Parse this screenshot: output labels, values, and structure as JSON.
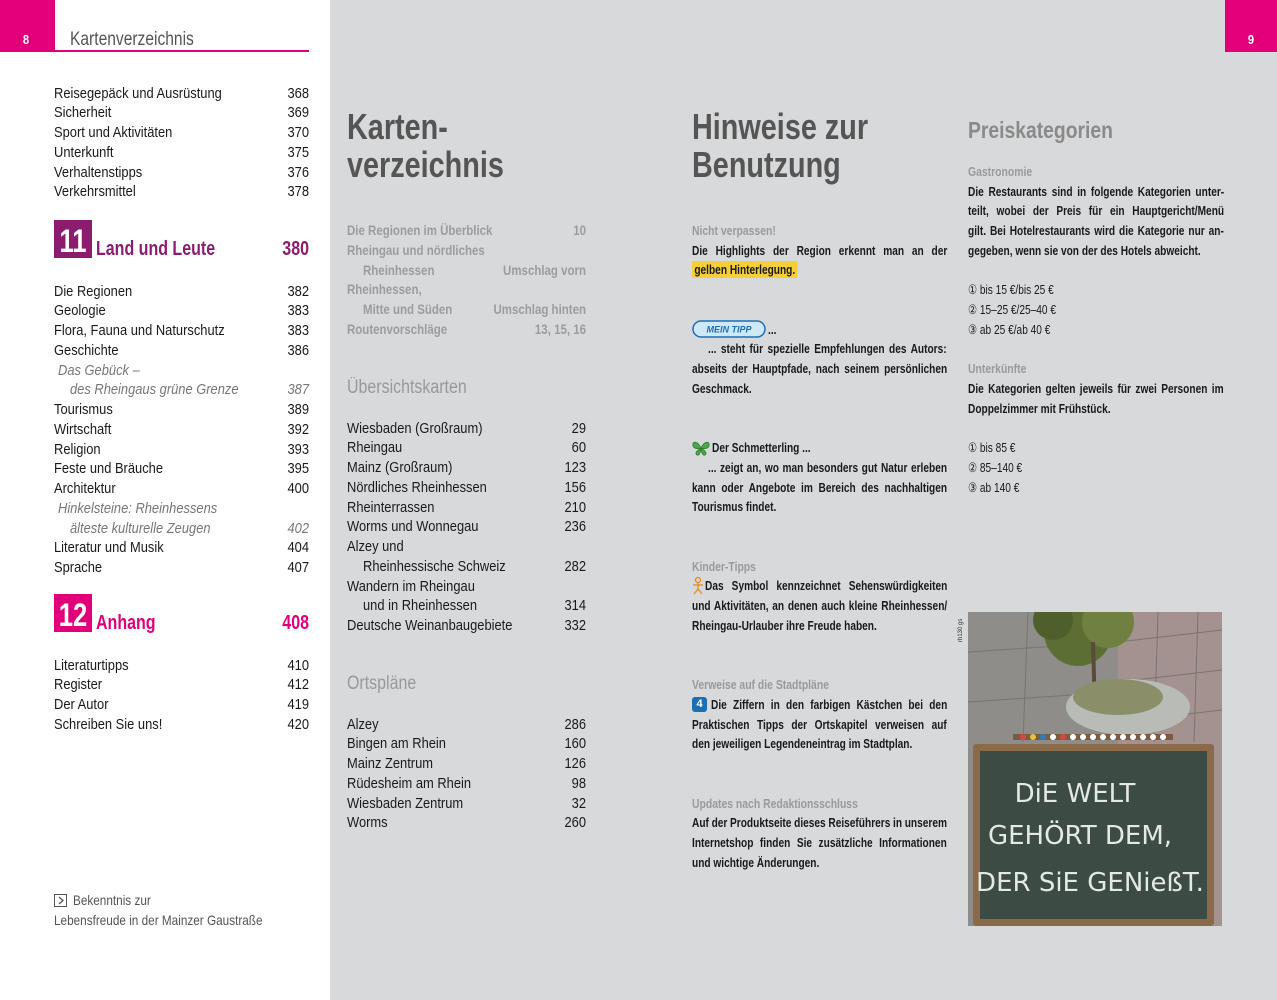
{
  "left_page": {
    "page_number": "8",
    "running_title": "Kartenverzeichnis",
    "toc": [
      {
        "entries": [
          {
            "text": "Reisegepäck und Ausrüstung",
            "page": 368
          },
          {
            "text": "Sicherheit",
            "page": 369
          },
          {
            "text": "Sport und Aktivitäten",
            "page": 370
          },
          {
            "text": "Unterkunft",
            "page": 375
          },
          {
            "text": "Verhaltenstipps",
            "page": 376
          },
          {
            "text": "Verkehrsmittel",
            "page": 378
          }
        ]
      },
      {
        "chapter_number": "11",
        "chapter_title": "Land und Leute",
        "chapter_page": 380,
        "color": "#8c1d6e",
        "entries": [
          {
            "text": "Die Regionen",
            "page": 382
          },
          {
            "text": "Geologie",
            "page": 383
          },
          {
            "text": "Flora, Fauna und Naturschutz",
            "page": 383
          },
          {
            "text": "Geschichte",
            "page": 386
          },
          {
            "lines": [
              "Das Gebück –",
              "des Rheingaus grüne Grenze"
            ],
            "page": 387,
            "style": "italic"
          },
          {
            "text": "Tourismus",
            "page": 389
          },
          {
            "text": "Wirtschaft",
            "page": 392
          },
          {
            "text": "Religion",
            "page": 393
          },
          {
            "text": "Feste und Bräuche",
            "page": 395
          },
          {
            "text": "Architektur",
            "page": 400
          },
          {
            "lines": [
              "Hinkelsteine: Rheinhessens",
              "älteste kulturelle Zeugen"
            ],
            "page": 402,
            "style": "italic"
          },
          {
            "text": "Literatur und Musik",
            "page": 404
          },
          {
            "text": "Sprache",
            "page": 407
          }
        ]
      },
      {
        "chapter_number": "12",
        "chapter_title": "Anhang",
        "chapter_page": 408,
        "color": "#e2007a",
        "entries": [
          {
            "text": "Literaturtipps",
            "page": 410
          },
          {
            "text": "Register",
            "page": 412
          },
          {
            "text": "Der Autor",
            "page": 419
          },
          {
            "text": "Schreiben Sie uns!",
            "page": 420
          }
        ]
      }
    ],
    "caption": [
      "Bekenntnis zur",
      "Lebensfreude in der Mainzer Gaustraße"
    ]
  },
  "map_index": {
    "title": [
      "Karten-",
      "verzeichnis"
    ],
    "regions": [
      {
        "text": "Die Regionen im Überblick",
        "page": 10
      },
      {
        "lines": [
          "Rheingau und nördliches",
          "Rheinhessen"
        ],
        "page": "Umschlag vorn"
      },
      {
        "lines": [
          "Rheinhessen,",
          "Mitte und Süden"
        ],
        "page": "Umschlag hinten"
      },
      {
        "text": "Routenvorschläge",
        "page": "13, 15, 16"
      }
    ],
    "sections": [
      {
        "heading": "Übersichtskarten",
        "entries": [
          {
            "text": "Wiesbaden (Großraum)",
            "page": 29
          },
          {
            "text": "Rheingau",
            "page": 60
          },
          {
            "text": "Mainz (Großraum)",
            "page": 123
          },
          {
            "text": "Nördliches Rheinhessen",
            "page": 156
          },
          {
            "text": "Rheinterrassen",
            "page": 210
          },
          {
            "text": "Worms und Wonnegau",
            "page": 236
          },
          {
            "lines": [
              "Alzey und",
              "Rheinhessische Schweiz"
            ],
            "page": 282
          },
          {
            "lines": [
              "Wandern im Rheingau",
              "und in Rheinhessen"
            ],
            "page": 314
          },
          {
            "text": "Deutsche Weinanbaugebiete",
            "page": 332
          }
        ]
      },
      {
        "heading": "Ortspläne",
        "entries": [
          {
            "text": "Alzey",
            "page": 286
          },
          {
            "text": "Bingen am Rhein",
            "page": 160
          },
          {
            "text": "Mainz Zentrum",
            "page": 126
          },
          {
            "text": "Rüdesheim am Rhein",
            "page": 98
          },
          {
            "text": "Wiesbaden Zentrum",
            "page": 32
          },
          {
            "text": "Worms",
            "page": 260
          }
        ]
      }
    ]
  },
  "usage_notes": {
    "title": [
      "Hinweise zur",
      "Benutzung"
    ],
    "blocks": [
      {
        "heading": "Nicht verpassen!",
        "lines": [
          [
            "Die Highlights der Region erkennt man an der"
          ],
          [
            {
              "text": "gelben Hinterlegung.",
              "bold": true,
              "highlight": true
            }
          ]
        ]
      },
      {
        "icon": "mein-tipp",
        "badge": "MEIN TIPP",
        "lines": [
          [
            "..."
          ],
          [
            "... steht für spezielle Empfehlungen des Autors:"
          ],
          [
            "abseits der Hauptpfade, nach seinem persönlichen"
          ],
          [
            "Geschmack."
          ]
        ]
      },
      {
        "icon": "butterfly",
        "lines": [
          [
            {
              "text": "Der Schmetterling ...",
              "bold": true
            }
          ],
          [
            "... zeigt an, wo man besonders gut Natur erleben"
          ],
          [
            "kann oder Angebote im Bereich des nachhaltigen"
          ],
          [
            "Tourismus findet."
          ]
        ]
      },
      {
        "heading": "Kinder-Tipps",
        "icon": "child",
        "lines": [
          [
            "Das Symbol kennzeichnet Sehenswürdigkeiten"
          ],
          [
            "und Aktivitäten, an denen auch kleine Rheinhessen/"
          ],
          [
            "Rheingau-Urlauber ihre Freude haben."
          ]
        ]
      },
      {
        "heading": "Verweise auf die Stadtpläne",
        "icon": "number",
        "badge": "4",
        "lines": [
          [
            "Die ",
            {
              "text": "Ziffern",
              "bold": true
            },
            " in den farbigen Kästchen bei den"
          ],
          [
            {
              "text": "Praktischen Tipps der Ortskapitel",
              "bold": true
            },
            " verweisen auf"
          ],
          [
            "den jeweiligen Legendeneintrag im Stadtplan."
          ]
        ]
      },
      {
        "heading": "Updates nach Redaktionsschluss",
        "lines": [
          [
            "Auf der Produktseite dieses Reiseführers in unserem"
          ],
          [
            "Internetshop finden Sie zusätzliche Informationen"
          ],
          [
            "und wichtige Änderungen."
          ]
        ]
      }
    ]
  },
  "right_page": {
    "page_number": "9",
    "price_categories": {
      "title": "Preiskategorien",
      "blocks": [
        {
          "heading": "Gastronomie",
          "lines": [
            [
              "Die Restaurants sind in folgende Kategorien unter-"
            ],
            [
              "teilt, wobei der Preis für ein ",
              {
                "text": "Hauptgericht/Menü",
                "bold": true
              }
            ],
            [
              "gilt. Bei Hotelrestaurants wird die Kategorie nur an-"
            ],
            [
              "gegeben, wenn sie von der des Hotels abweicht."
            ]
          ],
          "items": [
            "① bis 15 €/bis 25 €",
            "② 15–25 €/25–40 €",
            "③ ab 25 €/ab 40 €"
          ]
        },
        {
          "heading": "Unterkünfte",
          "lines": [
            [
              "Die Kategorien gelten jeweils für zwei Personen im"
            ],
            [
              {
                "text": "Doppelzimmer mit Frühstück.",
                "bold": true
              }
            ]
          ],
          "items": [
            "① bis 85 €",
            "② 85–140 €",
            "③ ab 140 €"
          ]
        }
      ]
    },
    "photo": {
      "chalk_text": [
        "DiE WELT",
        "GEHÖRT DEM,",
        "DER SiE GENießT."
      ],
      "credit": "rh130 gs"
    }
  }
}
